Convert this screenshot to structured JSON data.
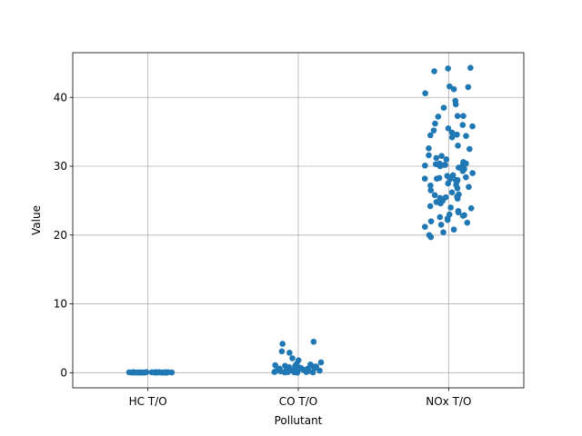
{
  "chart_data": {
    "type": "scatter",
    "title": "",
    "xlabel": "Pollutant",
    "ylabel": "Value",
    "categories": [
      "HC T/O",
      "CO T/O",
      "NOx T/O"
    ],
    "ylim": [
      -2.2,
      46.5
    ],
    "yticks": [
      0,
      10,
      20,
      30,
      40
    ],
    "grid": true,
    "color": "#1f77b4",
    "series": [
      {
        "category": "HC T/O",
        "values": [
          0.02,
          0.03,
          0.05,
          0.04,
          0.06,
          0.08,
          0.02,
          0.01,
          0.03,
          0.05,
          0.07,
          0.04,
          0.02,
          0.09,
          0.06,
          0.03,
          0.05,
          0.02,
          0.04,
          0.03,
          0.06,
          0.08,
          0.05,
          0.02,
          0.03,
          0.04,
          0.07,
          0.05,
          0.02,
          0.03
        ]
      },
      {
        "category": "CO T/O",
        "values": [
          4.5,
          4.2,
          3.1,
          2.9,
          2.1,
          1.8,
          1.5,
          1.3,
          1.2,
          1.0,
          1.0,
          0.9,
          0.8,
          0.8,
          0.7,
          0.7,
          0.6,
          0.6,
          0.5,
          0.5,
          0.5,
          0.4,
          0.4,
          0.4,
          0.3,
          0.3,
          0.3,
          0.3,
          0.2,
          0.2,
          0.2,
          0.2,
          0.1,
          0.1,
          0.1,
          0.1,
          0.05,
          0.05,
          0.05,
          0.02,
          0.6,
          0.9,
          0.4,
          0.2,
          1.1,
          0.7,
          0.3,
          0.5,
          0.15,
          0.25
        ]
      },
      {
        "category": "NOx T/O",
        "values": [
          44.2,
          44.3,
          43.8,
          41.6,
          41.5,
          41.2,
          40.6,
          39.5,
          39.0,
          38.5,
          37.3,
          37.3,
          37.2,
          36.0,
          35.8,
          35.5,
          35.2,
          34.9,
          34.6,
          34.4,
          34.2,
          33.0,
          32.6,
          32.5,
          31.6,
          31.2,
          31.0,
          30.6,
          30.4,
          30.4,
          30.3,
          30.3,
          30.2,
          30.2,
          30.1,
          30.0,
          29.8,
          29.6,
          29.3,
          29.0,
          28.7,
          28.4,
          28.3,
          28.2,
          28.2,
          28.1,
          28.0,
          28.0,
          27.8,
          27.5,
          27.3,
          27.0,
          26.8,
          26.5,
          26.2,
          25.8,
          25.6,
          25.5,
          25.4,
          25.3,
          25.2,
          25.0,
          24.8,
          24.6,
          24.2,
          24.0,
          23.9,
          23.5,
          23.0,
          22.9,
          22.8,
          22.6,
          22.4,
          22.2,
          22.0,
          21.8,
          21.5,
          21.2,
          20.8,
          20.4,
          20.0,
          19.7,
          34.5,
          27.2,
          29.9,
          25.9,
          23.3,
          31.5,
          36.2,
          28.6
        ]
      }
    ]
  }
}
